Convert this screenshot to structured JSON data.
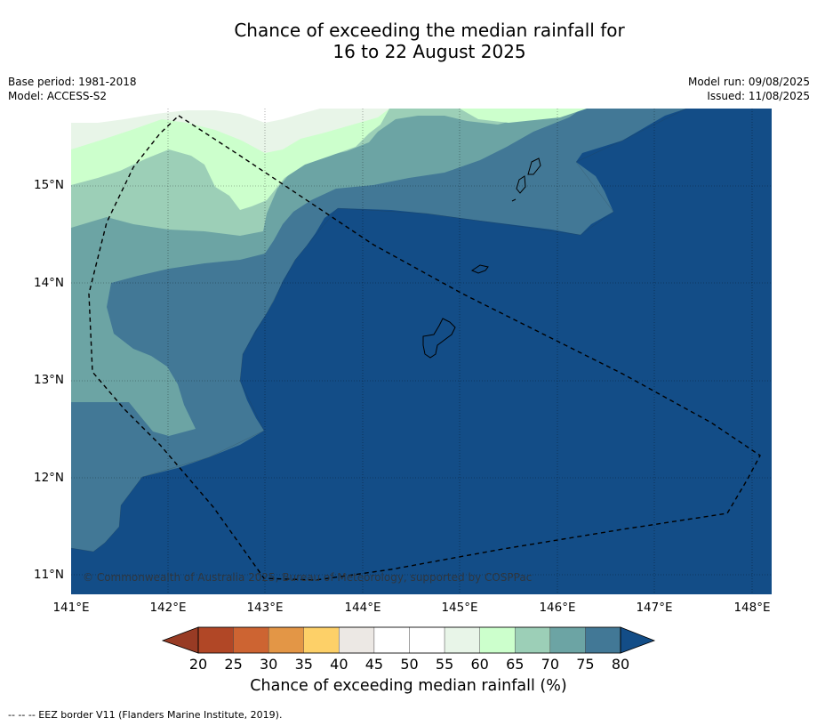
{
  "title": {
    "line1": "Chance of exceeding the median rainfall for",
    "line2": "16 to 22 August 2025"
  },
  "meta": {
    "base_period": "Base period: 1981-2018",
    "model": "Model: ACCESS-S2",
    "model_run": "Model run: 09/08/2025",
    "issued": "Issued: 11/08/2025"
  },
  "map": {
    "lat_labels": [
      "15°N",
      "14°N",
      "13°N",
      "12°N",
      "11°N"
    ],
    "lon_labels": [
      "141°E",
      "142°E",
      "143°E",
      "144°E",
      "145°E",
      "146°E",
      "147°E",
      "148°E"
    ],
    "copyright": "© Commonwealth of Australia 2025, Bureau of Meteorology, supported by COSPPac",
    "colors": {
      "c50_55": "#ffffff",
      "c55_60": "#e8f5e8",
      "c60_65": "#ccffcc",
      "c65_70": "#9ccfb7",
      "c70_75": "#6ca4a4",
      "c75_80": "#427896",
      "c80plus": "#134d87"
    }
  },
  "colorbar": {
    "labels": [
      "20",
      "25",
      "30",
      "35",
      "40",
      "45",
      "50",
      "55",
      "60",
      "65",
      "70",
      "75",
      "80"
    ],
    "colors": [
      "#b14726",
      "#cd6432",
      "#e39646",
      "#fdd068",
      "#ece8e4",
      "#ffffff",
      "#ffffff",
      "#e8f5e8",
      "#ccffcc",
      "#9ccfb7",
      "#6ca4a4",
      "#427896"
    ],
    "under_color": "#983b24",
    "over_color": "#134d87",
    "title": "Chance of exceeding median rainfall (%)"
  },
  "footer": "--  --  -- EEZ border V11 (Flanders Marine Institute, 2019)."
}
